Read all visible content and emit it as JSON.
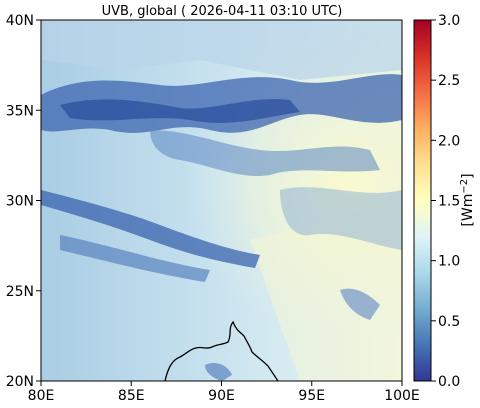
{
  "title": "UVB, global ( 2026-04-11 03:10 UTC)",
  "map": {
    "lon_ticks": [
      "80E",
      "85E",
      "90E",
      "95E",
      "100E"
    ],
    "lat_ticks": [
      "40N",
      "35N",
      "30N",
      "25N",
      "20N"
    ],
    "lon_range": [
      80,
      100
    ],
    "lat_range": [
      20,
      40
    ]
  },
  "colorbar": {
    "ticks": [
      "3.0",
      "2.5",
      "2.0",
      "1.5",
      "1.0",
      "0.5",
      "0.0"
    ],
    "range": [
      0.0,
      3.0
    ],
    "unit_main": "[Wm",
    "unit_exp": "−2",
    "unit_close": "]",
    "colormap": "RdYlBu_r",
    "colors": [
      "#313695",
      "#4575b4",
      "#74add1",
      "#abd9e9",
      "#e0f3f8",
      "#ffffbf",
      "#fee090",
      "#fdae61",
      "#f46d43",
      "#d73027",
      "#a50026"
    ]
  },
  "field": {
    "background_low": "#c7e3ef",
    "cloud_dark": "#2f5aa8",
    "cloud_mid": "#5a86c2",
    "bright_east": "#f6f7c8"
  }
}
